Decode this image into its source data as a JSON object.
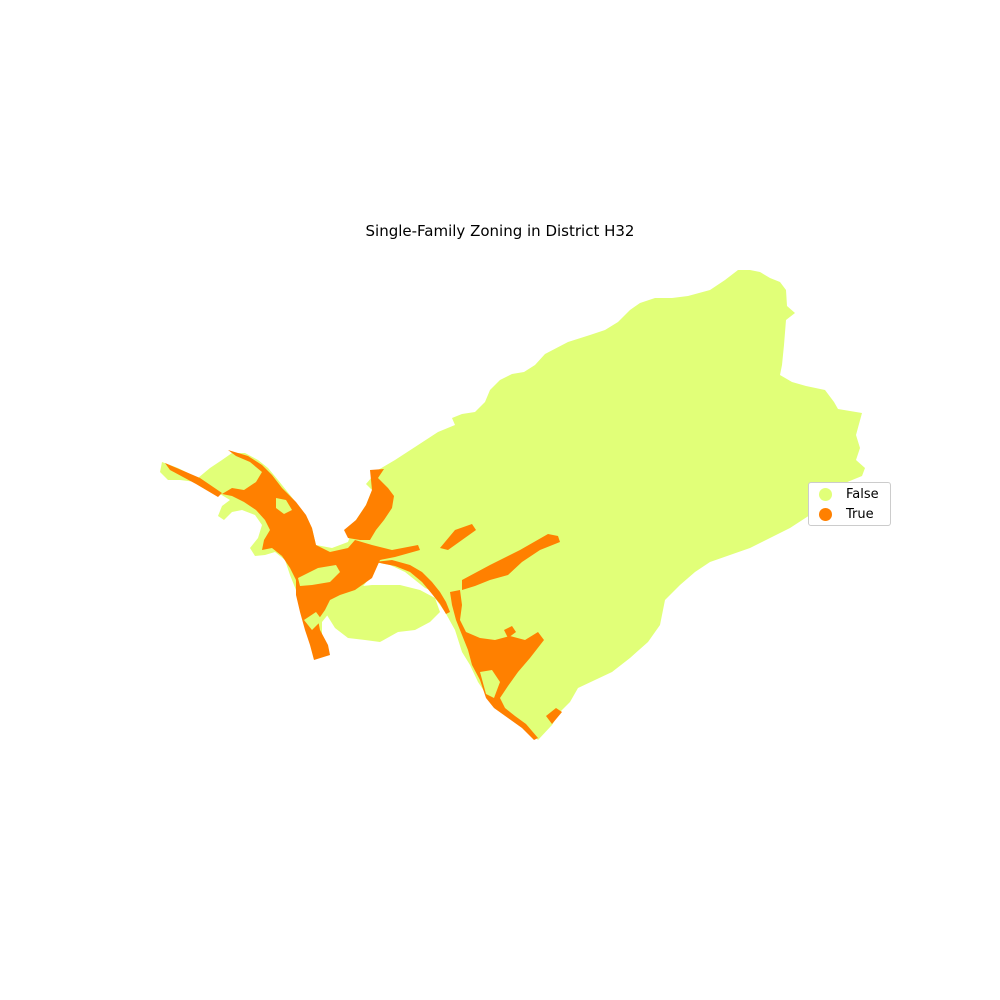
{
  "map": {
    "title": "Single-Family Zoning in District H32",
    "colors": {
      "false": "#e1ff78",
      "true": "#ff8000"
    }
  },
  "legend": {
    "items": [
      {
        "label": "False",
        "color": "#e1ff78"
      },
      {
        "label": "True",
        "color": "#ff8000"
      }
    ]
  }
}
